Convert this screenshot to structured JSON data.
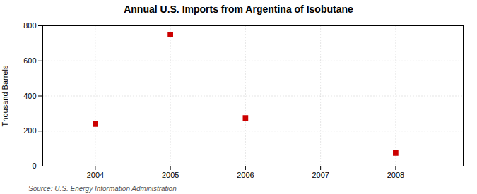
{
  "chart_data": {
    "type": "scatter",
    "title": "Annual U.S. Imports from Argentina of Isobutane",
    "ylabel": "Thousand Barrels",
    "source": "Source: U.S. Energy Information Administration",
    "x": [
      2004,
      2005,
      2006,
      2008
    ],
    "values": [
      240,
      750,
      275,
      75
    ],
    "color": "#cc0000",
    "marker": "square",
    "xlim": [
      2003.3,
      2008.9
    ],
    "xticks": [
      2004,
      2005,
      2006,
      2007,
      2008
    ],
    "ylim": [
      0,
      800
    ],
    "yticks": [
      0,
      200,
      400,
      600,
      800
    ],
    "grid": true
  }
}
